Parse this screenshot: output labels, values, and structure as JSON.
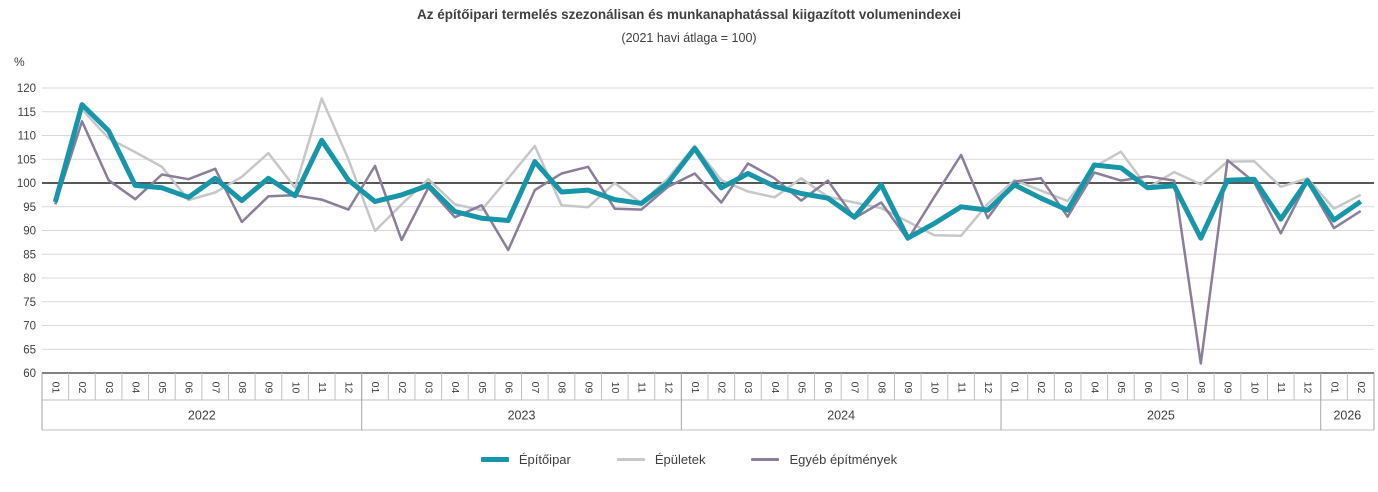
{
  "title": "Az építőipari termelés szezonálisan és munkanaphatással kiigazított volumenindexei",
  "subtitle": "(2021 havi átlaga = 100)",
  "y_axis": {
    "unit": "%",
    "min": 60,
    "max": 120,
    "step": 5,
    "reference_value": 100
  },
  "x_axis": {
    "years": [
      {
        "label": "2022",
        "months": 12
      },
      {
        "label": "2023",
        "months": 12
      },
      {
        "label": "2024",
        "months": 12
      },
      {
        "label": "2025",
        "months": 12
      },
      {
        "label": "2026",
        "months": 2
      }
    ]
  },
  "legend": [
    {
      "label": "Építőipar",
      "color": "#1795a9",
      "thickness": 5
    },
    {
      "label": "Épületek",
      "color": "#c5c7c9",
      "thickness": 3
    },
    {
      "label": "Egyéb építmények",
      "color": "#8b7e98",
      "thickness": 3
    }
  ],
  "colors": {
    "grid": "#d9d9d9",
    "reference_line": "#404040",
    "axis_line": "#595959",
    "cell_border": "#bfbfbf",
    "year_separator": "#a6a6a6",
    "text": "#404040"
  },
  "chart_data": {
    "type": "line",
    "title": "Az építőipari termelés szezonálisan és munkanaphatással kiigazított volumenindexei",
    "subtitle": "(2021 havi átlaga = 100)",
    "ylabel": "%",
    "ylim": [
      60,
      120
    ],
    "ytick_step": 5,
    "grid": true,
    "legend_position": "bottom",
    "reference_line": 100,
    "x_months": [
      "01",
      "02",
      "03",
      "04",
      "05",
      "06",
      "07",
      "08",
      "09",
      "10",
      "11",
      "12",
      "01",
      "02",
      "03",
      "04",
      "05",
      "06",
      "07",
      "08",
      "09",
      "10",
      "11",
      "12",
      "01",
      "02",
      "03",
      "04",
      "05",
      "06",
      "07",
      "08",
      "09",
      "10",
      "11",
      "12",
      "01",
      "02",
      "03",
      "04",
      "05",
      "06",
      "07",
      "08",
      "09",
      "10",
      "11",
      "12",
      "01",
      "02"
    ],
    "series": [
      {
        "name": "Építőipar",
        "color": "#1795a9",
        "width": 5,
        "values": [
          96.0,
          116.5,
          111.0,
          99.5,
          99.0,
          97.0,
          101.0,
          96.3,
          101.0,
          97.3,
          109.0,
          100.6,
          96.1,
          97.5,
          99.5,
          94.0,
          92.6,
          92.1,
          104.5,
          98.1,
          98.5,
          96.5,
          95.7,
          100.0,
          107.3,
          99.0,
          102.0,
          99.3,
          97.8,
          96.8,
          92.8,
          99.6,
          88.4,
          91.5,
          95.0,
          94.3,
          99.6,
          96.8,
          94.3,
          103.8,
          103.2,
          99.0,
          99.4,
          88.4,
          100.6,
          100.8,
          92.4,
          100.5,
          92.2,
          96.1
        ]
      },
      {
        "name": "Épületek",
        "color": "#c5c7c9",
        "width": 2.5,
        "values": [
          96.0,
          115.5,
          109.4,
          106.5,
          103.4,
          96.4,
          98.0,
          101.3,
          106.3,
          99.0,
          117.8,
          105.0,
          89.9,
          95.5,
          100.8,
          95.5,
          94.3,
          101.0,
          107.8,
          95.3,
          94.9,
          100.0,
          95.7,
          101.0,
          107.8,
          100.6,
          98.2,
          97.0,
          101.0,
          97.1,
          95.9,
          94.7,
          91.9,
          89.0,
          88.9,
          95.6,
          100.6,
          98.4,
          96.2,
          103.4,
          106.6,
          99.0,
          102.3,
          99.7,
          104.5,
          104.6,
          99.2,
          101.0,
          94.6,
          97.5
        ]
      },
      {
        "name": "Egyéb építmények",
        "color": "#8b7e98",
        "width": 2.5,
        "values": [
          95.5,
          113.0,
          100.6,
          96.6,
          101.8,
          100.8,
          103.0,
          91.8,
          97.2,
          97.4,
          96.5,
          94.4,
          103.6,
          88.0,
          99.0,
          92.8,
          95.3,
          85.9,
          98.5,
          102.0,
          103.4,
          94.6,
          94.4,
          99.2,
          102.0,
          95.9,
          104.1,
          101.0,
          96.3,
          100.5,
          92.6,
          95.9,
          88.1,
          97.1,
          105.9,
          92.6,
          100.3,
          101.0,
          92.9,
          102.2,
          100.5,
          101.4,
          100.5,
          62.0,
          104.8,
          100.2,
          89.4,
          100.3,
          90.5,
          94.1
        ]
      }
    ]
  }
}
